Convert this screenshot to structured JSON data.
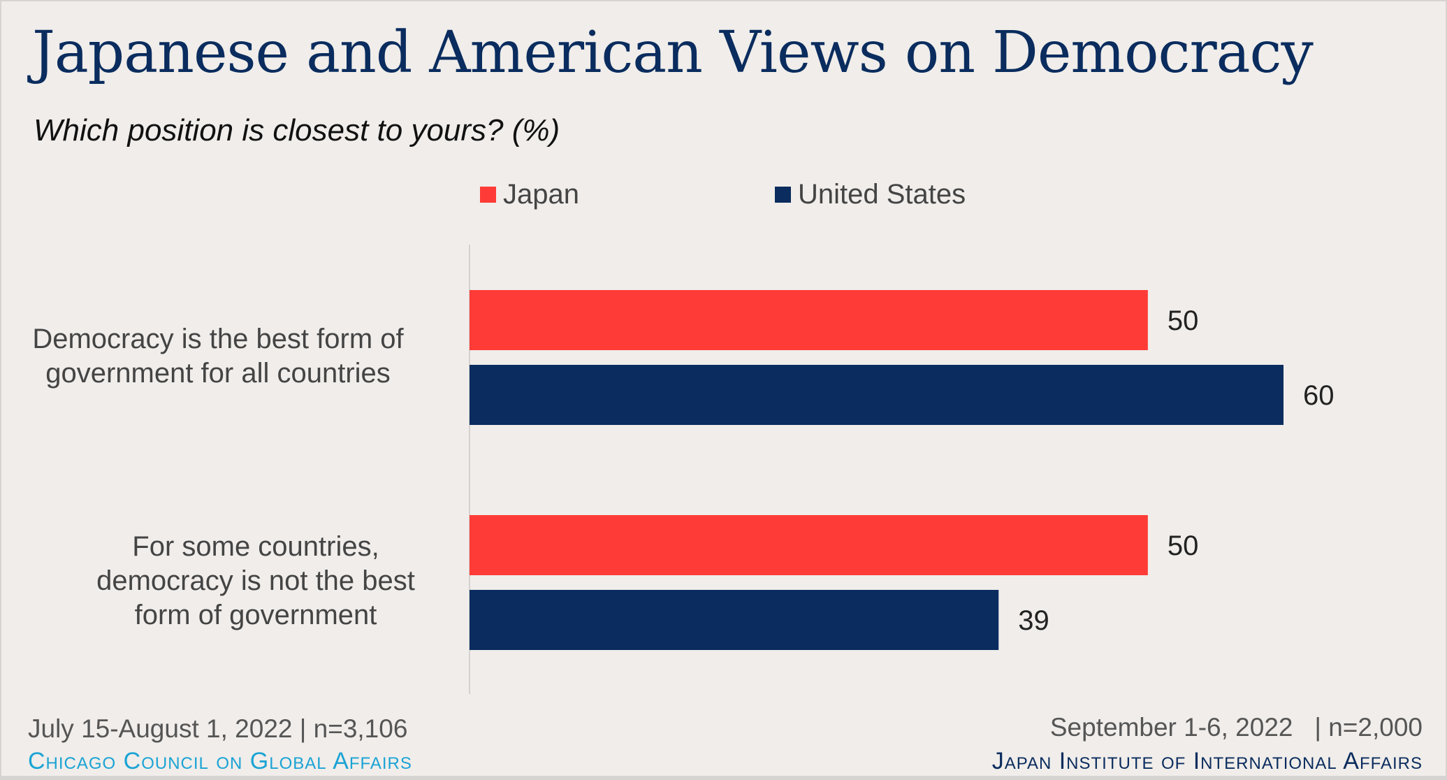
{
  "chart_data": {
    "type": "bar",
    "orientation": "horizontal",
    "title": "Japanese and American Views on Democracy",
    "subtitle": "Which position is closest to yours? (%)",
    "categories": [
      [
        "Democracy is the best form of",
        "government for all countries"
      ],
      [
        "For some countries,",
        "democracy is not the best",
        "form of government"
      ]
    ],
    "series": [
      {
        "name": "Japan",
        "color": "#ff3b37",
        "values": [
          50,
          50
        ]
      },
      {
        "name": "United States",
        "color": "#0a2c5e",
        "values": [
          60,
          39
        ]
      }
    ],
    "xlim": [
      0,
      60
    ],
    "grid": false,
    "legend": "top",
    "data_labels": true
  },
  "footer": {
    "left_note": "July 15-August 1, 2022 | n=3,106",
    "left_brand": "Chicago Council on Global Affairs",
    "left_brand_color": "#1aa3d4",
    "right_note": "September 1-6, 2022   | n=2,000",
    "right_brand": "Japan Institute of International Affairs",
    "right_brand_color": "#0a2c5e"
  }
}
